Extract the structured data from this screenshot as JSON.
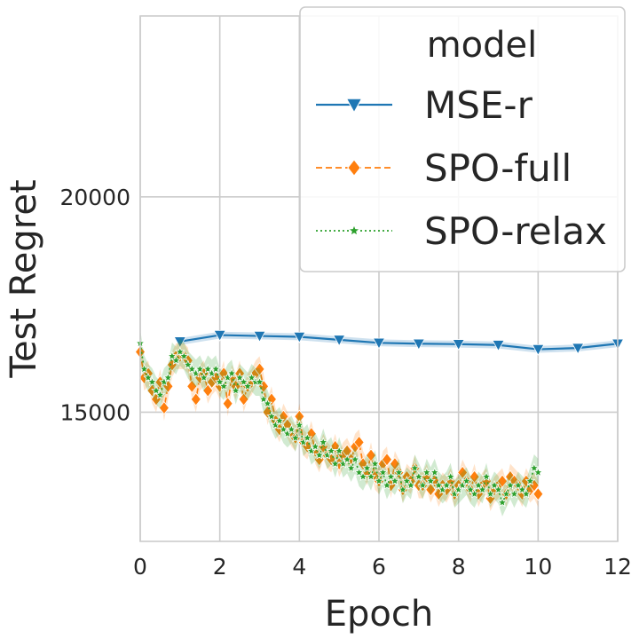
{
  "chart_data": {
    "type": "line",
    "title": "",
    "xlabel": "Epoch",
    "ylabel": "Test Regret",
    "xlim": [
      0,
      12
    ],
    "ylim": [
      12000,
      24200
    ],
    "xticks": [
      0,
      2,
      4,
      6,
      8,
      10,
      12
    ],
    "yticks": [
      15000,
      20000
    ],
    "grid": true,
    "legend": {
      "title": "model",
      "position": "top-right",
      "entries": [
        "MSE-r",
        "SPO-full",
        "SPO-relax"
      ]
    },
    "series": [
      {
        "name": "MSE-r",
        "color": "#1f77b4",
        "marker": "triangle-down",
        "linestyle": "solid",
        "x": [
          1,
          2,
          3,
          4,
          5,
          6,
          7,
          8,
          9,
          10,
          11,
          12
        ],
        "y": [
          16640,
          16790,
          16770,
          16750,
          16680,
          16610,
          16590,
          16580,
          16560,
          16460,
          16490,
          16590
        ],
        "band": 80
      },
      {
        "name": "SPO-full",
        "color": "#ff7f0e",
        "marker": "diamond",
        "linestyle": "dashed",
        "x": [
          0.0,
          0.1,
          0.2,
          0.3,
          0.4,
          0.5,
          0.6,
          0.7,
          0.8,
          0.9,
          1.0,
          1.1,
          1.2,
          1.3,
          1.4,
          1.5,
          1.6,
          1.7,
          1.8,
          1.9,
          2.0,
          2.1,
          2.2,
          2.3,
          2.4,
          2.5,
          2.6,
          2.7,
          2.8,
          2.9,
          3.0,
          3.1,
          3.2,
          3.3,
          3.4,
          3.5,
          3.6,
          3.7,
          3.8,
          3.9,
          4.0,
          4.1,
          4.2,
          4.3,
          4.4,
          4.5,
          4.6,
          4.7,
          4.8,
          4.9,
          5.0,
          5.1,
          5.2,
          5.3,
          5.4,
          5.5,
          5.6,
          5.7,
          5.8,
          5.9,
          6.0,
          6.1,
          6.2,
          6.3,
          6.4,
          6.5,
          6.6,
          6.7,
          6.8,
          6.9,
          7.0,
          7.1,
          7.2,
          7.3,
          7.4,
          7.5,
          7.6,
          7.7,
          7.8,
          7.9,
          8.0,
          8.1,
          8.2,
          8.3,
          8.4,
          8.5,
          8.6,
          8.7,
          8.8,
          8.9,
          9.0,
          9.1,
          9.2,
          9.3,
          9.4,
          9.5,
          9.6,
          9.7,
          9.8,
          9.9,
          10.0
        ],
        "y": [
          16400,
          15800,
          15900,
          15500,
          15300,
          15700,
          15100,
          15600,
          16100,
          16300,
          16300,
          16300,
          16200,
          15600,
          15300,
          15800,
          15900,
          15500,
          15700,
          15800,
          15600,
          15900,
          15200,
          15800,
          15600,
          15900,
          15300,
          15600,
          15700,
          15900,
          16000,
          15600,
          15000,
          15300,
          14800,
          14600,
          14900,
          14700,
          14500,
          14400,
          14900,
          14300,
          14200,
          14500,
          14100,
          13900,
          14200,
          14000,
          13900,
          14200,
          13800,
          14000,
          14100,
          13900,
          14200,
          14300,
          13800,
          13600,
          14000,
          13500,
          13400,
          13800,
          13900,
          13300,
          13800,
          13600,
          13200,
          13500,
          13400,
          13700,
          13300,
          13300,
          13500,
          13200,
          13400,
          13100,
          13300,
          13200,
          13400,
          13100,
          13300,
          13600,
          13400,
          13200,
          13500,
          13100,
          13300,
          13400,
          13000,
          13200,
          13300,
          13400,
          13100,
          13500,
          13400,
          13300,
          13100,
          13400,
          13200,
          13300,
          13100
        ],
        "band": 300
      },
      {
        "name": "SPO-relax",
        "color": "#2ca02c",
        "marker": "star",
        "linestyle": "dotted",
        "x": [
          0.0,
          0.1,
          0.2,
          0.3,
          0.4,
          0.5,
          0.6,
          0.7,
          0.8,
          0.9,
          1.0,
          1.1,
          1.2,
          1.3,
          1.4,
          1.5,
          1.6,
          1.7,
          1.8,
          1.9,
          2.0,
          2.1,
          2.2,
          2.3,
          2.4,
          2.5,
          2.6,
          2.7,
          2.8,
          2.9,
          3.0,
          3.1,
          3.2,
          3.3,
          3.4,
          3.5,
          3.6,
          3.7,
          3.8,
          3.9,
          4.0,
          4.1,
          4.2,
          4.3,
          4.4,
          4.5,
          4.6,
          4.7,
          4.8,
          4.9,
          5.0,
          5.1,
          5.2,
          5.3,
          5.4,
          5.5,
          5.6,
          5.7,
          5.8,
          5.9,
          6.0,
          6.1,
          6.2,
          6.3,
          6.4,
          6.5,
          6.6,
          6.7,
          6.8,
          6.9,
          7.0,
          7.1,
          7.2,
          7.3,
          7.4,
          7.5,
          7.6,
          7.7,
          7.8,
          7.9,
          8.0,
          8.1,
          8.2,
          8.3,
          8.4,
          8.5,
          8.6,
          8.7,
          8.8,
          8.9,
          9.0,
          9.1,
          9.2,
          9.3,
          9.4,
          9.5,
          9.6,
          9.7,
          9.8,
          9.9,
          10.0
        ],
        "y": [
          16600,
          16000,
          15800,
          15700,
          15500,
          15400,
          15700,
          15800,
          16300,
          16200,
          16400,
          16300,
          16100,
          16000,
          15900,
          16000,
          15800,
          16000,
          15900,
          16000,
          15700,
          15600,
          15800,
          15900,
          15500,
          15800,
          15700,
          15600,
          15800,
          15700,
          15700,
          15300,
          15200,
          14900,
          14700,
          14800,
          14600,
          14500,
          14600,
          14400,
          14700,
          14300,
          14400,
          14100,
          14200,
          14000,
          14300,
          14000,
          14100,
          13800,
          14100,
          13800,
          13900,
          13700,
          13900,
          13600,
          13500,
          13700,
          13500,
          13800,
          13400,
          13600,
          13300,
          13500,
          13400,
          13600,
          13200,
          13400,
          13300,
          13700,
          13500,
          13300,
          13600,
          13400,
          13600,
          13300,
          13200,
          13300,
          13500,
          13100,
          13200,
          13300,
          13400,
          13200,
          13100,
          13300,
          13200,
          13500,
          13100,
          13300,
          13200,
          12900,
          13100,
          13300,
          13100,
          13300,
          13200,
          13100,
          13400,
          13700,
          13600
        ],
        "band": 320
      }
    ]
  }
}
